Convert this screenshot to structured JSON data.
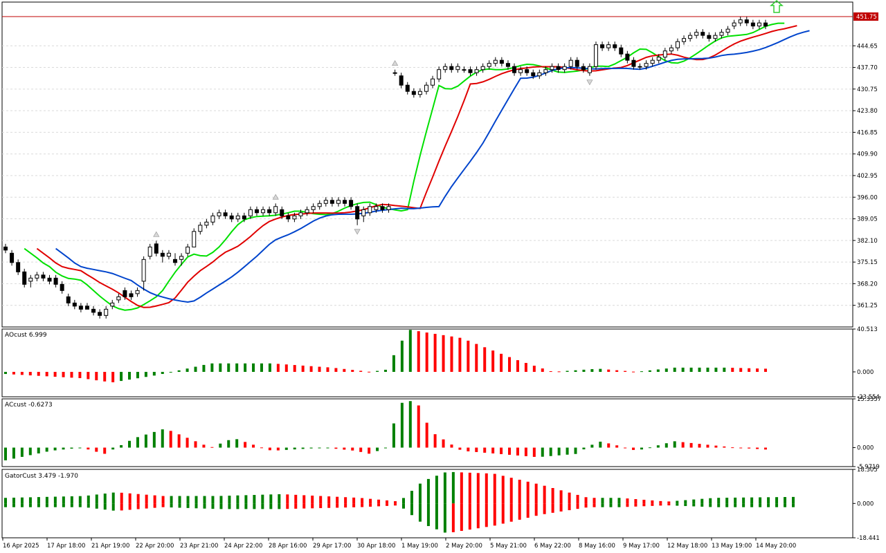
{
  "chart_data": {
    "type": "candlestick",
    "price_panel": {
      "y_ticks": [
        "444.65",
        "437.70",
        "430.75",
        "423.80",
        "416.85",
        "409.90",
        "402.95",
        "396.00",
        "389.05",
        "382.10",
        "375.15",
        "368.20",
        "361.25"
      ],
      "ylim": [
        354.3,
        458.7
      ],
      "current_price_label": "451.75",
      "current_price": 451.75,
      "signal_arrow": "up-arrow",
      "ma_colors": {
        "fast": "#00e000",
        "medium": "#e00000",
        "slow": "#0044cc"
      },
      "candles": [
        [
          380,
          379,
          381,
          378
        ],
        [
          378,
          375,
          379,
          374
        ],
        [
          375,
          372,
          376,
          371
        ],
        [
          372,
          368,
          373,
          367
        ],
        [
          369,
          370,
          371,
          367
        ],
        [
          370,
          371,
          372,
          369
        ],
        [
          371,
          370,
          372,
          369
        ],
        [
          370,
          369,
          371,
          368
        ],
        [
          370,
          368,
          371,
          367
        ],
        [
          368,
          366,
          369,
          365
        ],
        [
          364,
          362,
          365,
          361
        ],
        [
          362,
          361,
          363,
          360
        ],
        [
          361,
          360,
          362,
          359
        ],
        [
          361,
          360,
          362,
          360
        ],
        [
          360,
          359,
          361,
          358
        ],
        [
          359,
          358,
          360,
          357
        ],
        [
          358,
          360,
          361,
          357
        ],
        [
          361,
          362,
          363,
          360
        ],
        [
          363,
          364,
          365,
          362
        ],
        [
          366,
          364,
          367,
          363
        ],
        [
          365,
          364,
          366,
          363
        ],
        [
          365,
          366,
          367,
          364
        ],
        [
          369,
          376,
          377,
          366
        ],
        [
          377,
          380,
          381,
          376
        ],
        [
          381,
          378,
          382,
          377
        ],
        [
          378,
          377,
          379,
          375
        ],
        [
          377,
          378,
          379,
          376
        ],
        [
          376,
          375,
          378,
          374
        ],
        [
          376,
          377,
          378,
          374
        ],
        [
          378,
          380,
          381,
          377
        ],
        [
          380,
          385,
          386,
          380
        ],
        [
          385,
          387,
          388,
          384
        ],
        [
          387,
          388,
          389,
          386
        ],
        [
          388,
          390,
          391,
          387
        ],
        [
          390,
          391,
          392,
          389
        ],
        [
          391,
          390,
          392,
          389
        ],
        [
          390,
          389,
          391,
          388
        ],
        [
          389,
          390,
          391,
          388
        ],
        [
          390,
          389,
          391,
          388
        ],
        [
          390,
          392,
          393,
          389
        ],
        [
          392,
          391,
          393,
          390
        ],
        [
          391,
          392,
          393,
          390
        ],
        [
          392,
          391,
          393,
          390
        ],
        [
          391,
          393,
          394,
          390
        ],
        [
          392,
          390,
          393,
          389
        ],
        [
          390,
          389,
          391,
          388
        ],
        [
          389,
          390,
          391,
          388
        ],
        [
          390,
          391,
          392,
          389
        ],
        [
          391,
          392,
          393,
          390
        ],
        [
          392,
          393,
          394,
          391
        ],
        [
          393,
          394,
          395,
          392
        ],
        [
          394,
          395,
          396,
          393
        ],
        [
          395,
          394,
          396,
          393
        ],
        [
          394,
          395,
          396,
          393
        ],
        [
          395,
          394,
          396,
          393
        ],
        [
          395,
          393,
          396,
          392
        ],
        [
          393,
          389,
          394,
          387
        ],
        [
          390,
          392,
          393,
          388
        ],
        [
          391,
          393,
          394,
          390
        ],
        [
          392,
          393,
          394,
          391
        ],
        [
          393,
          392,
          394,
          391
        ],
        [
          392,
          393,
          394,
          391
        ],
        [
          436,
          436,
          437,
          435
        ],
        [
          435,
          432,
          436,
          431
        ],
        [
          432,
          430,
          433,
          429
        ],
        [
          430,
          429,
          431,
          428
        ],
        [
          429,
          430,
          431,
          428
        ],
        [
          430,
          432,
          433,
          429
        ],
        [
          432,
          434,
          435,
          431
        ],
        [
          434,
          437,
          438,
          433
        ],
        [
          437,
          438,
          439,
          436
        ],
        [
          438,
          437,
          439,
          436
        ],
        [
          437,
          438,
          439,
          436
        ],
        [
          437,
          437,
          438,
          436
        ],
        [
          437,
          436,
          438,
          435
        ],
        [
          436,
          437,
          438,
          435
        ],
        [
          437,
          438,
          439,
          436
        ],
        [
          438,
          439,
          440,
          437
        ],
        [
          439,
          440,
          441,
          438
        ],
        [
          440,
          439,
          441,
          438
        ],
        [
          439,
          438,
          440,
          437
        ],
        [
          438,
          436,
          439,
          435
        ],
        [
          436,
          437,
          438,
          435
        ],
        [
          437,
          436,
          438,
          435
        ],
        [
          436,
          435,
          437,
          434
        ],
        [
          435,
          436,
          437,
          434
        ],
        [
          436,
          437,
          438,
          435
        ],
        [
          437,
          438,
          439,
          436
        ],
        [
          438,
          437,
          439,
          436
        ],
        [
          437,
          438,
          439,
          436
        ],
        [
          438,
          440,
          441,
          437
        ],
        [
          440,
          438,
          441,
          437
        ],
        [
          438,
          437,
          439,
          436
        ],
        [
          436,
          438,
          439,
          435
        ],
        [
          438,
          445,
          446,
          437
        ],
        [
          445,
          444,
          446,
          443
        ],
        [
          444,
          445,
          446,
          443
        ],
        [
          445,
          444,
          446,
          443
        ],
        [
          444,
          442,
          445,
          441
        ],
        [
          442,
          440,
          443,
          439
        ],
        [
          440,
          438,
          441,
          437
        ],
        [
          438,
          438,
          439,
          437
        ],
        [
          438,
          439,
          440,
          437
        ],
        [
          439,
          440,
          441,
          438
        ],
        [
          440,
          441,
          442,
          439
        ],
        [
          441,
          443,
          444,
          440
        ],
        [
          443,
          444,
          445,
          442
        ],
        [
          444,
          446,
          447,
          443
        ],
        [
          446,
          447,
          448,
          445
        ],
        [
          447,
          448,
          449,
          446
        ],
        [
          448,
          449,
          450,
          447
        ],
        [
          449,
          448,
          450,
          447
        ],
        [
          448,
          447,
          449,
          446
        ],
        [
          447,
          448,
          449,
          446
        ],
        [
          448,
          449,
          450,
          447
        ],
        [
          449,
          450,
          451,
          448
        ],
        [
          451,
          452,
          453,
          450
        ],
        [
          452,
          453,
          454,
          451
        ],
        [
          453,
          452,
          454,
          451
        ],
        [
          452,
          451,
          453,
          450
        ],
        [
          451,
          452,
          453,
          450
        ],
        [
          452,
          451,
          453,
          450
        ]
      ]
    },
    "indicators": [
      {
        "name": "AOcust",
        "label": "AOcust 6.999",
        "value": 6.999,
        "y_ticks": [
          "40.513",
          "0.000",
          "-23.554"
        ],
        "ylim": [
          -23.554,
          40.513
        ],
        "colors": {
          "up": "#008000",
          "down": "#ff0000"
        }
      },
      {
        "name": "ACcust",
        "label": "ACcust -0.6273",
        "value": -0.6273,
        "y_ticks": [
          "15.3357",
          "0.000",
          "-5.9719"
        ],
        "ylim": [
          -5.9719,
          15.3357
        ],
        "colors": {
          "up": "#008000",
          "down": "#ff0000"
        }
      },
      {
        "name": "GatorCust",
        "label": "GatorCust 3.479 -1.970",
        "values": [
          3.479,
          -1.97
        ],
        "y_ticks": [
          "18.305",
          "0.000",
          "-18.441"
        ],
        "ylim": [
          -18.441,
          18.305
        ],
        "colors": {
          "up": "#008000",
          "down": "#ff0000"
        }
      }
    ],
    "x_labels": [
      "16 Apr 2025",
      "17 Apr 18:00",
      "21 Apr 19:00",
      "22 Apr 20:00",
      "23 Apr 21:00",
      "24 Apr 22:00",
      "28 Apr 16:00",
      "29 Apr 17:00",
      "30 Apr 18:00",
      "1 May 19:00",
      "2 May 20:00",
      "5 May 21:00",
      "6 May 22:00",
      "8 May 16:00",
      "9 May 17:00",
      "12 May 18:00",
      "13 May 19:00",
      "14 May 20:00"
    ]
  }
}
